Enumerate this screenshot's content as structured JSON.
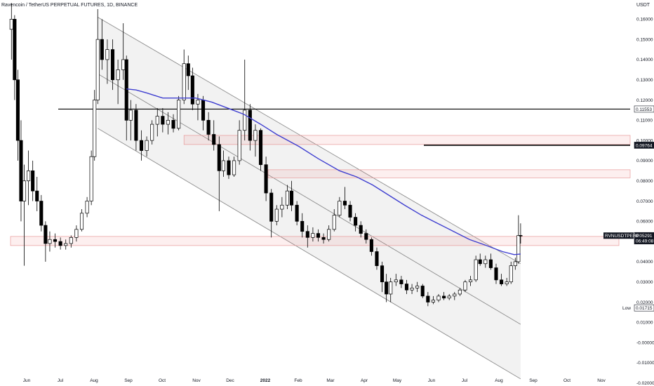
{
  "chart_data": {
    "type": "candlestick",
    "title": "Ravencoin / TetherUS PERPETUAL FUTURES, 1D, BINANCE",
    "y_unit": "USDT",
    "y_ticks": [
      "0.16000",
      "0.15000",
      "0.14000",
      "0.13000",
      "0.12000",
      "0.11000",
      "0.10000",
      "0.09000",
      "0.08000",
      "0.07000",
      "0.06000",
      "0.05000",
      "0.04000",
      "0.03000",
      "0.02000",
      "0.01000",
      "-0.00000",
      "-0.01000",
      "-0.02000"
    ],
    "y_tick_values": [
      0.16,
      0.15,
      0.14,
      0.13,
      0.12,
      0.11,
      0.1,
      0.09,
      0.08,
      0.07,
      0.06,
      0.05,
      0.04,
      0.03,
      0.02,
      0.01,
      0,
      -0.01,
      -0.02
    ],
    "ylim": [
      -0.0215,
      0.1695
    ],
    "x_ticks": [
      "Jun",
      "Jul",
      "Aug",
      "Sep",
      "Oct",
      "Nov",
      "Dec",
      "2022",
      "Feb",
      "Mar",
      "Apr",
      "May",
      "Jun",
      "Jul",
      "Aug",
      "Sep",
      "Oct",
      "Nov"
    ],
    "grid": false,
    "candles": [
      {
        "x": "May 21",
        "o": 0.155,
        "h": 0.168,
        "l": 0.14,
        "c": 0.16
      },
      {
        "x": "May 24",
        "o": 0.16,
        "h": 0.162,
        "l": 0.12,
        "c": 0.13
      },
      {
        "x": "May 27",
        "o": 0.13,
        "h": 0.135,
        "l": 0.09,
        "c": 0.1
      },
      {
        "x": "May 30",
        "o": 0.1,
        "h": 0.11,
        "l": 0.06,
        "c": 0.07
      },
      {
        "x": "Jun 2",
        "o": 0.07,
        "h": 0.088,
        "l": 0.038,
        "c": 0.08
      },
      {
        "x": "Jun 6",
        "o": 0.08,
        "h": 0.095,
        "l": 0.068,
        "c": 0.085
      },
      {
        "x": "Jun 10",
        "o": 0.085,
        "h": 0.09,
        "l": 0.07,
        "c": 0.075
      },
      {
        "x": "Jun 14",
        "o": 0.075,
        "h": 0.082,
        "l": 0.065,
        "c": 0.07
      },
      {
        "x": "Jun 18",
        "o": 0.07,
        "h": 0.073,
        "l": 0.055,
        "c": 0.058
      },
      {
        "x": "Jun 22",
        "o": 0.058,
        "h": 0.06,
        "l": 0.04,
        "c": 0.049
      },
      {
        "x": "Jun 26",
        "o": 0.049,
        "h": 0.055,
        "l": 0.045,
        "c": 0.051
      },
      {
        "x": "Jul 1",
        "o": 0.051,
        "h": 0.054,
        "l": 0.047,
        "c": 0.05
      },
      {
        "x": "Jul 6",
        "o": 0.05,
        "h": 0.052,
        "l": 0.046,
        "c": 0.048
      },
      {
        "x": "Jul 11",
        "o": 0.048,
        "h": 0.051,
        "l": 0.046,
        "c": 0.049
      },
      {
        "x": "Jul 16",
        "o": 0.049,
        "h": 0.053,
        "l": 0.047,
        "c": 0.052
      },
      {
        "x": "Jul 21",
        "o": 0.052,
        "h": 0.058,
        "l": 0.05,
        "c": 0.056
      },
      {
        "x": "Jul 26",
        "o": 0.056,
        "h": 0.066,
        "l": 0.055,
        "c": 0.064
      },
      {
        "x": "Jul 31",
        "o": 0.064,
        "h": 0.072,
        "l": 0.062,
        "c": 0.07
      },
      {
        "x": "Aug 4",
        "o": 0.07,
        "h": 0.095,
        "l": 0.068,
        "c": 0.092
      },
      {
        "x": "Aug 7",
        "o": 0.092,
        "h": 0.125,
        "l": 0.09,
        "c": 0.12
      },
      {
        "x": "Aug 10",
        "o": 0.12,
        "h": 0.165,
        "l": 0.118,
        "c": 0.15
      },
      {
        "x": "Aug 14",
        "o": 0.15,
        "h": 0.16,
        "l": 0.135,
        "c": 0.14
      },
      {
        "x": "Aug 19",
        "o": 0.14,
        "h": 0.15,
        "l": 0.128,
        "c": 0.145
      },
      {
        "x": "Aug 24",
        "o": 0.145,
        "h": 0.15,
        "l": 0.125,
        "c": 0.13
      },
      {
        "x": "Aug 29",
        "o": 0.13,
        "h": 0.14,
        "l": 0.118,
        "c": 0.135
      },
      {
        "x": "Sep 3",
        "o": 0.135,
        "h": 0.158,
        "l": 0.13,
        "c": 0.14
      },
      {
        "x": "Sep 6",
        "o": 0.14,
        "h": 0.142,
        "l": 0.1,
        "c": 0.11
      },
      {
        "x": "Sep 10",
        "o": 0.11,
        "h": 0.12,
        "l": 0.1,
        "c": 0.115
      },
      {
        "x": "Sep 15",
        "o": 0.115,
        "h": 0.118,
        "l": 0.095,
        "c": 0.1
      },
      {
        "x": "Sep 20",
        "o": 0.1,
        "h": 0.105,
        "l": 0.09,
        "c": 0.095
      },
      {
        "x": "Sep 25",
        "o": 0.095,
        "h": 0.102,
        "l": 0.092,
        "c": 0.1
      },
      {
        "x": "Sep 30",
        "o": 0.1,
        "h": 0.11,
        "l": 0.098,
        "c": 0.108
      },
      {
        "x": "Oct 5",
        "o": 0.108,
        "h": 0.116,
        "l": 0.102,
        "c": 0.112
      },
      {
        "x": "Oct 10",
        "o": 0.112,
        "h": 0.116,
        "l": 0.104,
        "c": 0.108
      },
      {
        "x": "Oct 15",
        "o": 0.108,
        "h": 0.114,
        "l": 0.103,
        "c": 0.11
      },
      {
        "x": "Oct 20",
        "o": 0.11,
        "h": 0.113,
        "l": 0.104,
        "c": 0.106
      },
      {
        "x": "Oct 25",
        "o": 0.106,
        "h": 0.122,
        "l": 0.105,
        "c": 0.12
      },
      {
        "x": "Oct 30",
        "o": 0.12,
        "h": 0.145,
        "l": 0.118,
        "c": 0.138
      },
      {
        "x": "Nov 3",
        "o": 0.138,
        "h": 0.142,
        "l": 0.125,
        "c": 0.132
      },
      {
        "x": "Nov 7",
        "o": 0.132,
        "h": 0.136,
        "l": 0.115,
        "c": 0.118
      },
      {
        "x": "Nov 12",
        "o": 0.118,
        "h": 0.123,
        "l": 0.11,
        "c": 0.12
      },
      {
        "x": "Nov 17",
        "o": 0.12,
        "h": 0.122,
        "l": 0.105,
        "c": 0.11
      },
      {
        "x": "Nov 22",
        "o": 0.11,
        "h": 0.114,
        "l": 0.1,
        "c": 0.103
      },
      {
        "x": "Nov 27",
        "o": 0.103,
        "h": 0.11,
        "l": 0.095,
        "c": 0.098
      },
      {
        "x": "Dec 2",
        "o": 0.098,
        "h": 0.102,
        "l": 0.065,
        "c": 0.085
      },
      {
        "x": "Dec 6",
        "o": 0.085,
        "h": 0.095,
        "l": 0.082,
        "c": 0.09
      },
      {
        "x": "Dec 11",
        "o": 0.09,
        "h": 0.092,
        "l": 0.081,
        "c": 0.083
      },
      {
        "x": "Dec 16",
        "o": 0.083,
        "h": 0.092,
        "l": 0.082,
        "c": 0.09
      },
      {
        "x": "Dec 21",
        "o": 0.09,
        "h": 0.11,
        "l": 0.088,
        "c": 0.105
      },
      {
        "x": "Dec 26",
        "o": 0.105,
        "h": 0.14,
        "l": 0.1,
        "c": 0.115
      },
      {
        "x": "Dec 31",
        "o": 0.115,
        "h": 0.118,
        "l": 0.095,
        "c": 0.1
      },
      {
        "x": "Jan 5",
        "o": 0.1,
        "h": 0.108,
        "l": 0.092,
        "c": 0.105
      },
      {
        "x": "Jan 10",
        "o": 0.105,
        "h": 0.106,
        "l": 0.085,
        "c": 0.088
      },
      {
        "x": "Jan 15",
        "o": 0.088,
        "h": 0.092,
        "l": 0.07,
        "c": 0.074
      },
      {
        "x": "Jan 20",
        "o": 0.074,
        "h": 0.076,
        "l": 0.052,
        "c": 0.06
      },
      {
        "x": "Jan 25",
        "o": 0.06,
        "h": 0.068,
        "l": 0.058,
        "c": 0.066
      },
      {
        "x": "Jan 30",
        "o": 0.066,
        "h": 0.072,
        "l": 0.062,
        "c": 0.068
      },
      {
        "x": "Feb 4",
        "o": 0.068,
        "h": 0.078,
        "l": 0.066,
        "c": 0.075
      },
      {
        "x": "Feb 8",
        "o": 0.075,
        "h": 0.08,
        "l": 0.065,
        "c": 0.068
      },
      {
        "x": "Feb 13",
        "o": 0.068,
        "h": 0.07,
        "l": 0.058,
        "c": 0.06
      },
      {
        "x": "Feb 18",
        "o": 0.06,
        "h": 0.064,
        "l": 0.052,
        "c": 0.055
      },
      {
        "x": "Feb 23",
        "o": 0.055,
        "h": 0.058,
        "l": 0.047,
        "c": 0.052
      },
      {
        "x": "Feb 28",
        "o": 0.052,
        "h": 0.057,
        "l": 0.05,
        "c": 0.054
      },
      {
        "x": "Mar 5",
        "o": 0.054,
        "h": 0.056,
        "l": 0.05,
        "c": 0.052
      },
      {
        "x": "Mar 10",
        "o": 0.052,
        "h": 0.054,
        "l": 0.049,
        "c": 0.051
      },
      {
        "x": "Mar 15",
        "o": 0.051,
        "h": 0.058,
        "l": 0.05,
        "c": 0.056
      },
      {
        "x": "Mar 20",
        "o": 0.056,
        "h": 0.066,
        "l": 0.055,
        "c": 0.063
      },
      {
        "x": "Mar 25",
        "o": 0.063,
        "h": 0.072,
        "l": 0.062,
        "c": 0.07
      },
      {
        "x": "Mar 30",
        "o": 0.07,
        "h": 0.077,
        "l": 0.066,
        "c": 0.068
      },
      {
        "x": "Apr 4",
        "o": 0.068,
        "h": 0.07,
        "l": 0.06,
        "c": 0.062
      },
      {
        "x": "Apr 9",
        "o": 0.062,
        "h": 0.064,
        "l": 0.055,
        "c": 0.058
      },
      {
        "x": "Apr 14",
        "o": 0.058,
        "h": 0.06,
        "l": 0.052,
        "c": 0.054
      },
      {
        "x": "Apr 19",
        "o": 0.054,
        "h": 0.056,
        "l": 0.049,
        "c": 0.051
      },
      {
        "x": "Apr 24",
        "o": 0.051,
        "h": 0.052,
        "l": 0.043,
        "c": 0.045
      },
      {
        "x": "Apr 29",
        "o": 0.045,
        "h": 0.047,
        "l": 0.036,
        "c": 0.038
      },
      {
        "x": "May 4",
        "o": 0.038,
        "h": 0.04,
        "l": 0.025,
        "c": 0.03
      },
      {
        "x": "May 8",
        "o": 0.03,
        "h": 0.034,
        "l": 0.02,
        "c": 0.024
      },
      {
        "x": "May 12",
        "o": 0.024,
        "h": 0.032,
        "l": 0.02,
        "c": 0.03
      },
      {
        "x": "May 17",
        "o": 0.03,
        "h": 0.034,
        "l": 0.028,
        "c": 0.031
      },
      {
        "x": "May 22",
        "o": 0.031,
        "h": 0.033,
        "l": 0.027,
        "c": 0.029
      },
      {
        "x": "May 27",
        "o": 0.029,
        "h": 0.031,
        "l": 0.024,
        "c": 0.026
      },
      {
        "x": "Jun 1",
        "o": 0.026,
        "h": 0.029,
        "l": 0.024,
        "c": 0.027
      },
      {
        "x": "Jun 6",
        "o": 0.027,
        "h": 0.03,
        "l": 0.025,
        "c": 0.028
      },
      {
        "x": "Jun 11",
        "o": 0.028,
        "h": 0.029,
        "l": 0.022,
        "c": 0.023
      },
      {
        "x": "Jun 16",
        "o": 0.023,
        "h": 0.025,
        "l": 0.018,
        "c": 0.02
      },
      {
        "x": "Jun 21",
        "o": 0.02,
        "h": 0.023,
        "l": 0.019,
        "c": 0.021
      },
      {
        "x": "Jun 26",
        "o": 0.021,
        "h": 0.024,
        "l": 0.02,
        "c": 0.023
      },
      {
        "x": "Jul 1",
        "o": 0.023,
        "h": 0.025,
        "l": 0.021,
        "c": 0.022
      },
      {
        "x": "Jul 6",
        "o": 0.022,
        "h": 0.024,
        "l": 0.021,
        "c": 0.023
      },
      {
        "x": "Jul 11",
        "o": 0.023,
        "h": 0.025,
        "l": 0.021,
        "c": 0.024
      },
      {
        "x": "Jul 16",
        "o": 0.024,
        "h": 0.027,
        "l": 0.023,
        "c": 0.026
      },
      {
        "x": "Jul 21",
        "o": 0.026,
        "h": 0.031,
        "l": 0.025,
        "c": 0.03
      },
      {
        "x": "Jul 26",
        "o": 0.03,
        "h": 0.033,
        "l": 0.028,
        "c": 0.031
      },
      {
        "x": "Jul 31",
        "o": 0.031,
        "h": 0.043,
        "l": 0.03,
        "c": 0.041
      },
      {
        "x": "Aug 4",
        "o": 0.041,
        "h": 0.044,
        "l": 0.038,
        "c": 0.039
      },
      {
        "x": "Aug 9",
        "o": 0.039,
        "h": 0.043,
        "l": 0.037,
        "c": 0.041
      },
      {
        "x": "Aug 14",
        "o": 0.041,
        "h": 0.044,
        "l": 0.036,
        "c": 0.037
      },
      {
        "x": "Aug 19",
        "o": 0.037,
        "h": 0.039,
        "l": 0.029,
        "c": 0.031
      },
      {
        "x": "Aug 24",
        "o": 0.031,
        "h": 0.034,
        "l": 0.028,
        "c": 0.029
      },
      {
        "x": "Aug 29",
        "o": 0.029,
        "h": 0.032,
        "l": 0.028,
        "c": 0.03
      },
      {
        "x": "Sep 2",
        "o": 0.03,
        "h": 0.04,
        "l": 0.029,
        "c": 0.038
      },
      {
        "x": "Sep 6",
        "o": 0.038,
        "h": 0.042,
        "l": 0.036,
        "c": 0.04
      },
      {
        "x": "Sep 9",
        "o": 0.04,
        "h": 0.063,
        "l": 0.039,
        "c": 0.053
      },
      {
        "x": "Sep 11",
        "o": 0.053,
        "h": 0.059,
        "l": 0.049,
        "c": 0.0529
      }
    ],
    "moving_average": {
      "color": "#3f3fd0",
      "points": [
        {
          "x": "Sep 6",
          "y": 0.1255
        },
        {
          "x": "Sep 15",
          "y": 0.125
        },
        {
          "x": "Sep 25",
          "y": 0.1235
        },
        {
          "x": "Oct 10",
          "y": 0.121
        },
        {
          "x": "Oct 25",
          "y": 0.121
        },
        {
          "x": "Nov 10",
          "y": 0.121
        },
        {
          "x": "Nov 25",
          "y": 0.119
        },
        {
          "x": "Dec 10",
          "y": 0.116
        },
        {
          "x": "Dec 25",
          "y": 0.113
        },
        {
          "x": "Jan 10",
          "y": 0.108
        },
        {
          "x": "Jan 25",
          "y": 0.103
        },
        {
          "x": "Feb 15",
          "y": 0.097
        },
        {
          "x": "Mar 5",
          "y": 0.091
        },
        {
          "x": "Mar 25",
          "y": 0.085
        },
        {
          "x": "Apr 10",
          "y": 0.082
        },
        {
          "x": "Apr 25",
          "y": 0.078
        },
        {
          "x": "May 10",
          "y": 0.073
        },
        {
          "x": "May 25",
          "y": 0.068
        },
        {
          "x": "Jun 10",
          "y": 0.063
        },
        {
          "x": "Jun 25",
          "y": 0.059
        },
        {
          "x": "Jul 10",
          "y": 0.055
        },
        {
          "x": "Jul 25",
          "y": 0.051
        },
        {
          "x": "Aug 10",
          "y": 0.048
        },
        {
          "x": "Aug 25",
          "y": 0.045
        },
        {
          "x": "Sep 5",
          "y": 0.0435
        },
        {
          "x": "Sep 11",
          "y": 0.0438
        }
      ]
    },
    "channel": {
      "upper": [
        {
          "x": "Aug 10",
          "y": 0.161
        },
        {
          "x": "Sep 11",
          "y": 0.039
        }
      ],
      "middle": [
        {
          "x": "Aug 10",
          "y": 0.133
        },
        {
          "x": "Sep 11",
          "y": 0.009
        }
      ],
      "lower": [
        {
          "x": "Aug 10",
          "y": 0.106
        },
        {
          "x": "Sep 11",
          "y": -0.018
        }
      ]
    },
    "horizontal_lines": [
      {
        "y": 0.11553,
        "from": "Jun 21",
        "color": "#000000"
      },
      {
        "y": 0.09764,
        "from": "Jun 1",
        "color": "#000000"
      }
    ],
    "zones": [
      {
        "y_low": 0.098,
        "y_high": 0.1025,
        "from": "Oct 30",
        "to": "Nov 30"
      },
      {
        "y_low": 0.0815,
        "y_high": 0.0855,
        "from": "Jan 4",
        "to": "Nov 30"
      },
      {
        "y_low": 0.048,
        "y_high": 0.0525,
        "from": "May 18",
        "to": "Nov 30"
      }
    ],
    "price_labels": [
      {
        "text": "0.11553",
        "value": 0.11553,
        "style": "outline"
      },
      {
        "text": "0.09764",
        "value": 0.09764,
        "style": "dark"
      },
      {
        "text": "0.05291",
        "value": 0.05291,
        "style": "dark"
      },
      {
        "text": "06:49:08",
        "value": 0.0503,
        "style": "dark"
      },
      {
        "text": "0.01715",
        "value": 0.01715,
        "style": "outline"
      }
    ],
    "symbol_tag": "RVNUSDTPERP",
    "low_label": "Low"
  }
}
